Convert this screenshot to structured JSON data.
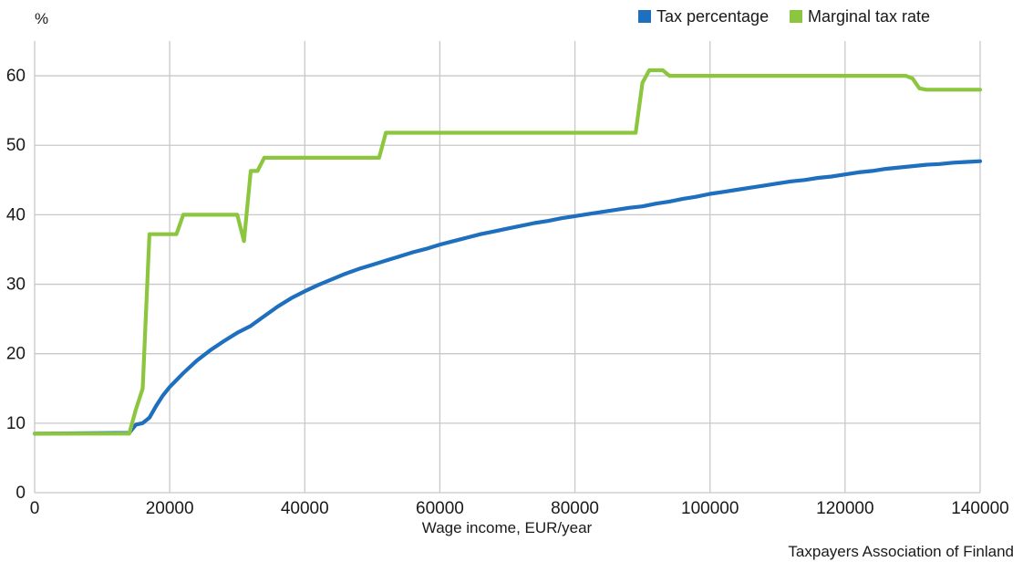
{
  "chart_data": {
    "type": "line",
    "ylabel": "%",
    "xlabel": "Wage income, EUR/year",
    "source": "Taxpayers Association of Finland",
    "xlim": [
      0,
      140000
    ],
    "ylim": [
      0,
      65
    ],
    "x_ticks": [
      0,
      20000,
      40000,
      60000,
      80000,
      100000,
      120000,
      140000
    ],
    "x_tick_labels": [
      "0",
      "20000",
      "40000",
      "60000",
      "80000",
      "100000",
      "120000",
      "140000"
    ],
    "y_ticks": [
      0,
      10,
      20,
      30,
      40,
      50,
      60
    ],
    "y_tick_labels": [
      "0",
      "10",
      "20",
      "30",
      "40",
      "50",
      "60"
    ],
    "grid": true,
    "legend_position": "top-right",
    "series": [
      {
        "name": "Tax percentage",
        "color": "#1f6fbf",
        "points": [
          [
            0,
            8.5
          ],
          [
            14000,
            8.6
          ],
          [
            15000,
            9.8
          ],
          [
            16000,
            10.0
          ],
          [
            17000,
            10.8
          ],
          [
            18000,
            12.5
          ],
          [
            19000,
            14.0
          ],
          [
            20000,
            15.2
          ],
          [
            22000,
            17.2
          ],
          [
            24000,
            19.0
          ],
          [
            26000,
            20.5
          ],
          [
            28000,
            21.8
          ],
          [
            30000,
            23.0
          ],
          [
            32000,
            24.0
          ],
          [
            34000,
            25.4
          ],
          [
            36000,
            26.8
          ],
          [
            38000,
            28.0
          ],
          [
            40000,
            29.0
          ],
          [
            42000,
            29.9
          ],
          [
            44000,
            30.7
          ],
          [
            46000,
            31.5
          ],
          [
            48000,
            32.2
          ],
          [
            50000,
            32.8
          ],
          [
            52000,
            33.4
          ],
          [
            54000,
            34.0
          ],
          [
            56000,
            34.6
          ],
          [
            58000,
            35.1
          ],
          [
            60000,
            35.7
          ],
          [
            62000,
            36.2
          ],
          [
            64000,
            36.7
          ],
          [
            66000,
            37.2
          ],
          [
            68000,
            37.6
          ],
          [
            70000,
            38.0
          ],
          [
            72000,
            38.4
          ],
          [
            74000,
            38.8
          ],
          [
            76000,
            39.1
          ],
          [
            78000,
            39.5
          ],
          [
            80000,
            39.8
          ],
          [
            82000,
            40.1
          ],
          [
            84000,
            40.4
          ],
          [
            86000,
            40.7
          ],
          [
            88000,
            41.0
          ],
          [
            90000,
            41.2
          ],
          [
            92000,
            41.6
          ],
          [
            94000,
            41.9
          ],
          [
            96000,
            42.3
          ],
          [
            98000,
            42.6
          ],
          [
            100000,
            43.0
          ],
          [
            102000,
            43.3
          ],
          [
            104000,
            43.6
          ],
          [
            106000,
            43.9
          ],
          [
            108000,
            44.2
          ],
          [
            110000,
            44.5
          ],
          [
            112000,
            44.8
          ],
          [
            114000,
            45.0
          ],
          [
            116000,
            45.3
          ],
          [
            118000,
            45.5
          ],
          [
            120000,
            45.8
          ],
          [
            122000,
            46.1
          ],
          [
            124000,
            46.3
          ],
          [
            126000,
            46.6
          ],
          [
            128000,
            46.8
          ],
          [
            130000,
            47.0
          ],
          [
            132000,
            47.2
          ],
          [
            134000,
            47.3
          ],
          [
            136000,
            47.5
          ],
          [
            138000,
            47.6
          ],
          [
            140000,
            47.7
          ]
        ]
      },
      {
        "name": "Marginal tax rate",
        "color": "#8cc63f",
        "points": [
          [
            0,
            8.5
          ],
          [
            14000,
            8.5
          ],
          [
            15000,
            12.0
          ],
          [
            16000,
            15.0
          ],
          [
            17000,
            37.2
          ],
          [
            21000,
            37.2
          ],
          [
            22000,
            40.0
          ],
          [
            30000,
            40.0
          ],
          [
            31000,
            36.2
          ],
          [
            32000,
            46.3
          ],
          [
            33000,
            46.3
          ],
          [
            34000,
            48.2
          ],
          [
            51000,
            48.2
          ],
          [
            52000,
            51.8
          ],
          [
            89000,
            51.8
          ],
          [
            90000,
            59.0
          ],
          [
            91000,
            60.8
          ],
          [
            93000,
            60.8
          ],
          [
            94000,
            60.0
          ],
          [
            129000,
            60.0
          ],
          [
            130000,
            59.6
          ],
          [
            131000,
            58.2
          ],
          [
            132000,
            58.0
          ],
          [
            140000,
            58.0
          ]
        ]
      }
    ]
  }
}
